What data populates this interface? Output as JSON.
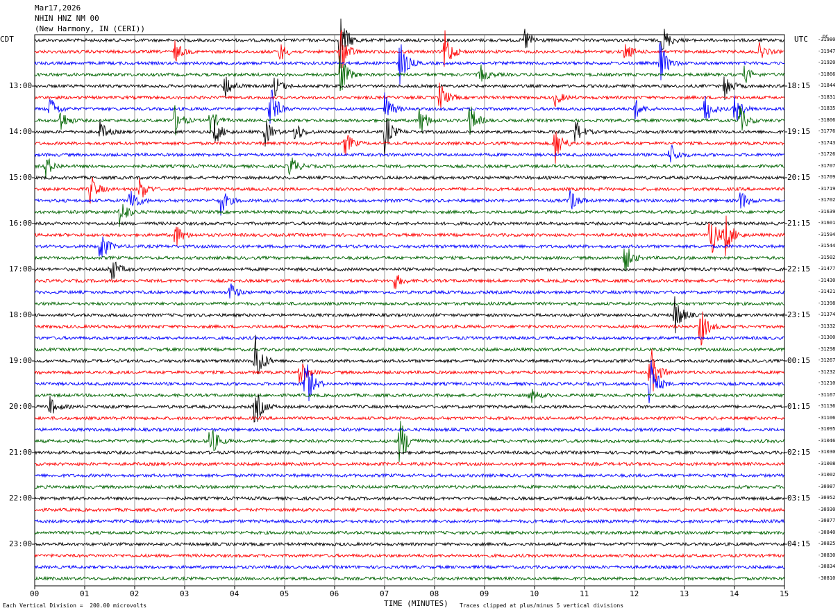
{
  "header": {
    "date": "Mar17,2026",
    "station": "NHIN HNZ NM 00",
    "location": "(New Harmony, IN (CERI))"
  },
  "left_tz": "CDT",
  "right_tz": "UTC",
  "dc_label": "DC",
  "footer": {
    "scale": "Each Vertical Division =  200.00 microvolts",
    "clip": "Traces clipped at plus/minus 5 vertical divisions",
    "xlabel": "TIME (MINUTES)"
  },
  "colors": {
    "black": "#000000",
    "red": "#ff0000",
    "blue": "#0000ff",
    "green": "#006400",
    "grid": "#808080"
  },
  "chart_data": {
    "type": "line",
    "title": "NHIN HNZ NM 00",
    "xlabel": "TIME (MINUTES)",
    "xlim": [
      0,
      15
    ],
    "x_ticks": [
      "00",
      "01",
      "02",
      "03",
      "04",
      "05",
      "06",
      "07",
      "08",
      "09",
      "10",
      "11",
      "12",
      "13",
      "14",
      "15"
    ],
    "cdt_labels": [
      "13:00",
      "14:00",
      "15:00",
      "16:00",
      "17:00",
      "18:00",
      "19:00",
      "20:00",
      "21:00",
      "22:00",
      "23:00"
    ],
    "utc_labels": [
      "18:15",
      "19:15",
      "20:15",
      "21:15",
      "22:15",
      "23:15",
      "00:15",
      "01:15",
      "02:15",
      "03:15",
      "04:15"
    ],
    "trace_colors": [
      "black",
      "red",
      "blue",
      "green"
    ],
    "dc_offsets": [
      -31980,
      -31947,
      -31920,
      -31866,
      -31844,
      -31831,
      -31835,
      -31806,
      -31776,
      -31743,
      -31726,
      -31707,
      -31709,
      -31719,
      -31702,
      -31639,
      -31601,
      -31594,
      -31544,
      -31502,
      -31477,
      -31430,
      -31421,
      -31398,
      -31374,
      -31332,
      -31300,
      -31298,
      -31267,
      -31232,
      -31210,
      -31167,
      -31136,
      -31106,
      -31095,
      -31046,
      -31030,
      -31008,
      -31002,
      -30987,
      -30952,
      -30930,
      -30877,
      -30840,
      -30825,
      -30830,
      -30834,
      -30810
    ],
    "events": [
      {
        "row": 0,
        "minute": 6.1,
        "amp": 3.0
      },
      {
        "row": 0,
        "minute": 9.8,
        "amp": 1.2
      },
      {
        "row": 0,
        "minute": 12.55,
        "amp": 1.5
      },
      {
        "row": 1,
        "minute": 2.8,
        "amp": 1.0
      },
      {
        "row": 1,
        "minute": 4.9,
        "amp": 0.9
      },
      {
        "row": 1,
        "minute": 6.1,
        "amp": 2.5
      },
      {
        "row": 1,
        "minute": 8.2,
        "amp": 2.0
      },
      {
        "row": 1,
        "minute": 11.8,
        "amp": 0.9
      },
      {
        "row": 1,
        "minute": 14.5,
        "amp": 0.7
      },
      {
        "row": 2,
        "minute": 7.3,
        "amp": 2.2
      },
      {
        "row": 2,
        "minute": 12.5,
        "amp": 2.2
      },
      {
        "row": 3,
        "minute": 6.1,
        "amp": 2.2
      },
      {
        "row": 3,
        "minute": 8.9,
        "amp": 1.0
      },
      {
        "row": 3,
        "minute": 14.2,
        "amp": 0.8
      },
      {
        "row": 4,
        "minute": 3.8,
        "amp": 1.3
      },
      {
        "row": 4,
        "minute": 4.8,
        "amp": 1.0
      },
      {
        "row": 4,
        "minute": 13.8,
        "amp": 1.3
      },
      {
        "row": 5,
        "minute": 8.1,
        "amp": 1.5
      },
      {
        "row": 5,
        "minute": 10.4,
        "amp": 0.8
      },
      {
        "row": 6,
        "minute": 0.3,
        "amp": 1.2
      },
      {
        "row": 6,
        "minute": 4.7,
        "amp": 2.5
      },
      {
        "row": 6,
        "minute": 7.0,
        "amp": 1.5
      },
      {
        "row": 6,
        "minute": 12.0,
        "amp": 1.0
      },
      {
        "row": 6,
        "minute": 13.4,
        "amp": 1.6
      },
      {
        "row": 6,
        "minute": 14.0,
        "amp": 1.6
      },
      {
        "row": 7,
        "minute": 0.5,
        "amp": 1.2
      },
      {
        "row": 7,
        "minute": 2.8,
        "amp": 1.4
      },
      {
        "row": 7,
        "minute": 3.5,
        "amp": 1.2
      },
      {
        "row": 7,
        "minute": 7.7,
        "amp": 1.6
      },
      {
        "row": 7,
        "minute": 8.7,
        "amp": 1.6
      },
      {
        "row": 7,
        "minute": 14.1,
        "amp": 1.4
      },
      {
        "row": 8,
        "minute": 1.3,
        "amp": 1.0
      },
      {
        "row": 8,
        "minute": 3.6,
        "amp": 1.2
      },
      {
        "row": 8,
        "minute": 4.6,
        "amp": 1.3
      },
      {
        "row": 8,
        "minute": 5.2,
        "amp": 1.1
      },
      {
        "row": 8,
        "minute": 7.0,
        "amp": 2.0
      },
      {
        "row": 8,
        "minute": 10.8,
        "amp": 1.3
      },
      {
        "row": 9,
        "minute": 6.2,
        "amp": 1.2
      },
      {
        "row": 9,
        "minute": 10.4,
        "amp": 2.0
      },
      {
        "row": 10,
        "minute": 12.7,
        "amp": 1.2
      },
      {
        "row": 11,
        "minute": 0.2,
        "amp": 1.2
      },
      {
        "row": 11,
        "minute": 5.1,
        "amp": 1.2
      },
      {
        "row": 13,
        "minute": 1.1,
        "amp": 1.5
      },
      {
        "row": 13,
        "minute": 2.1,
        "amp": 1.2
      },
      {
        "row": 14,
        "minute": 1.9,
        "amp": 1.6
      },
      {
        "row": 14,
        "minute": 3.7,
        "amp": 1.6
      },
      {
        "row": 14,
        "minute": 10.7,
        "amp": 1.2
      },
      {
        "row": 14,
        "minute": 14.1,
        "amp": 1.1
      },
      {
        "row": 15,
        "minute": 1.7,
        "amp": 1.6
      },
      {
        "row": 17,
        "minute": 2.8,
        "amp": 1.3
      },
      {
        "row": 17,
        "minute": 13.5,
        "amp": 2.6
      },
      {
        "row": 17,
        "minute": 13.8,
        "amp": 2.4
      },
      {
        "row": 18,
        "minute": 1.3,
        "amp": 1.8
      },
      {
        "row": 19,
        "minute": 11.8,
        "amp": 1.5
      },
      {
        "row": 20,
        "minute": 1.5,
        "amp": 1.6
      },
      {
        "row": 21,
        "minute": 7.2,
        "amp": 0.8
      },
      {
        "row": 22,
        "minute": 3.9,
        "amp": 1.0
      },
      {
        "row": 24,
        "minute": 12.8,
        "amp": 2.0
      },
      {
        "row": 25,
        "minute": 13.3,
        "amp": 2.2
      },
      {
        "row": 28,
        "minute": 4.4,
        "amp": 3.0
      },
      {
        "row": 29,
        "minute": 5.3,
        "amp": 1.6
      },
      {
        "row": 29,
        "minute": 12.3,
        "amp": 3.0
      },
      {
        "row": 30,
        "minute": 5.4,
        "amp": 3.0
      },
      {
        "row": 30,
        "minute": 12.3,
        "amp": 3.0
      },
      {
        "row": 31,
        "minute": 9.9,
        "amp": 0.8
      },
      {
        "row": 32,
        "minute": 0.3,
        "amp": 0.9
      },
      {
        "row": 32,
        "minute": 4.4,
        "amp": 2.0
      },
      {
        "row": 35,
        "minute": 3.5,
        "amp": 1.8
      },
      {
        "row": 35,
        "minute": 7.3,
        "amp": 2.6
      }
    ]
  }
}
